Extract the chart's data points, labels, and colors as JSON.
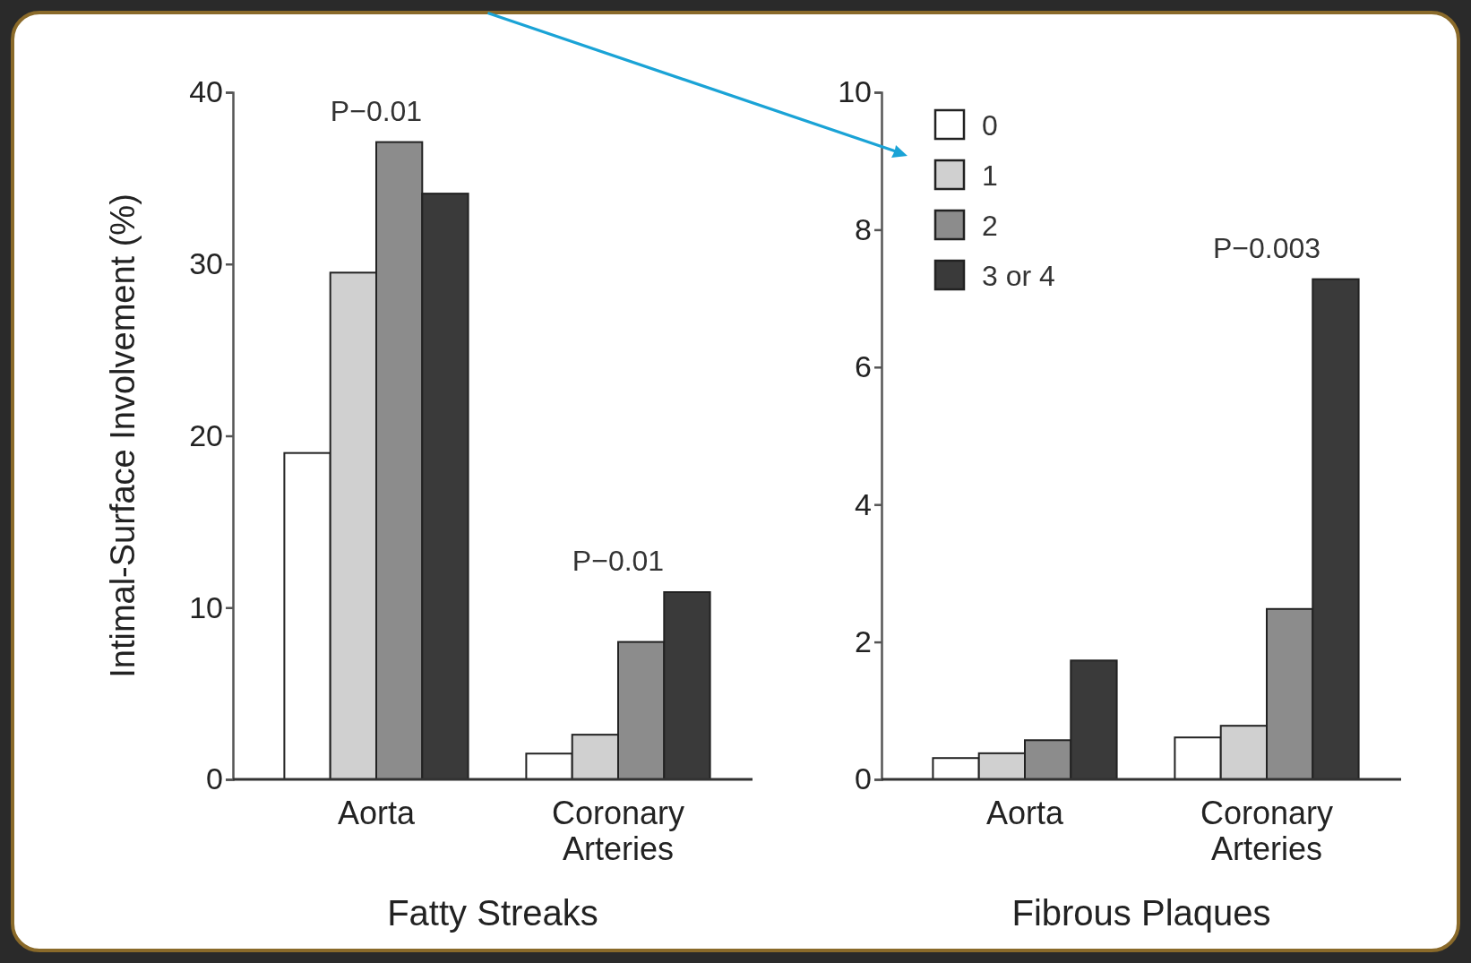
{
  "chart_data": [
    {
      "type": "bar",
      "xlabel": "Fatty Streaks",
      "ylabel": "Intimal-Surface Involvement (%)",
      "categories": [
        "Aorta",
        "Coronary Arteries"
      ],
      "series": [
        {
          "color": "#ffffff",
          "values": [
            19.0,
            1.5
          ]
        },
        {
          "color": "#d0d0d0",
          "values": [
            29.5,
            2.6
          ]
        },
        {
          "color": "#8c8c8c",
          "values": [
            37.1,
            8.0
          ]
        },
        {
          "color": "#3a3a3a",
          "values": [
            34.1,
            10.9
          ]
        }
      ],
      "ylim": [
        0,
        40
      ],
      "yticks": [
        0,
        10,
        20,
        30,
        40
      ],
      "legend": false,
      "annotations": [
        "P−0.01",
        "P−0.01"
      ]
    },
    {
      "type": "bar",
      "xlabel": "Fibrous Plaques",
      "categories": [
        "Aorta",
        "Coronary Arteries"
      ],
      "series": [
        {
          "name": "0",
          "color": "#ffffff",
          "values": [
            0.31,
            0.61
          ]
        },
        {
          "name": "1",
          "color": "#d0d0d0",
          "values": [
            0.38,
            0.78
          ]
        },
        {
          "name": "2",
          "color": "#8c8c8c",
          "values": [
            0.57,
            2.48
          ]
        },
        {
          "name": "3 or 4",
          "color": "#3a3a3a",
          "values": [
            1.73,
            7.28
          ]
        }
      ],
      "ylim": [
        0,
        10
      ],
      "yticks": [
        0,
        2,
        4,
        6,
        8,
        10
      ],
      "legend": "top left",
      "annotations": [
        "P−0.003"
      ]
    }
  ]
}
